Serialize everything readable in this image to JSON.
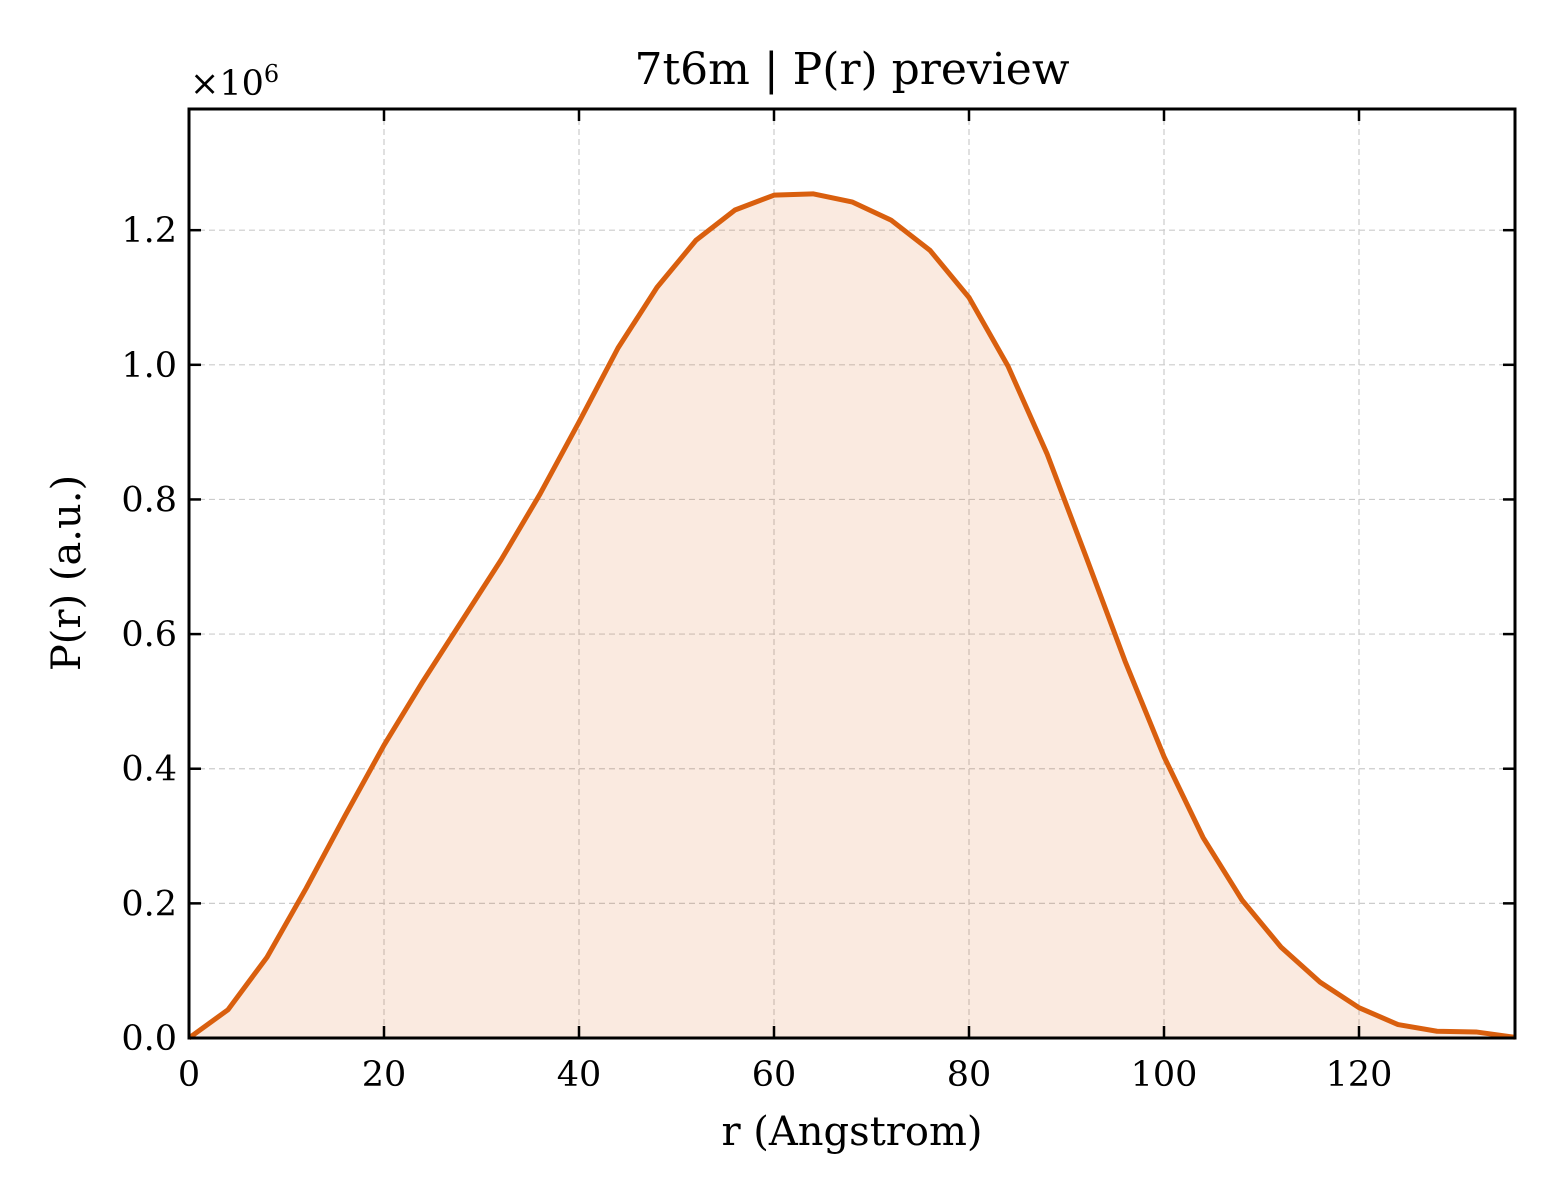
{
  "chart_data": {
    "type": "area",
    "title": "7t6m | P(r) preview",
    "xlabel": "r (Angstrom)",
    "ylabel": "P(r) (a.u.)",
    "y_multiplier_text": "×10",
    "y_multiplier_exponent": "6",
    "xlim": [
      0,
      136
    ],
    "ylim": [
      0,
      1.38
    ],
    "x_ticks": [
      0,
      20,
      40,
      60,
      80,
      100,
      120
    ],
    "x_tick_labels": [
      "0",
      "20",
      "40",
      "60",
      "80",
      "100",
      "120"
    ],
    "y_ticks": [
      0,
      0.2,
      0.4,
      0.6,
      0.8,
      1.0,
      1.2
    ],
    "y_tick_labels": [
      "0.0",
      "0.2",
      "0.4",
      "0.6",
      "0.8",
      "1.0",
      "1.2"
    ],
    "grid": true,
    "line_color": "#d95f0e",
    "fill_color": "#d95f0e",
    "fill_opacity": 0.13,
    "x": [
      0,
      4,
      8,
      12,
      16,
      20,
      24,
      28,
      32,
      36,
      40,
      44,
      48,
      52,
      56,
      60,
      64,
      68,
      72,
      76,
      80,
      84,
      88,
      92,
      96,
      100,
      104,
      108,
      112,
      116,
      120,
      124,
      128,
      132,
      136
    ],
    "y": [
      0.0,
      0.042,
      0.12,
      0.222,
      0.33,
      0.435,
      0.53,
      0.62,
      0.71,
      0.808,
      0.915,
      1.025,
      1.115,
      1.185,
      1.23,
      1.252,
      1.254,
      1.242,
      1.215,
      1.17,
      1.1,
      0.998,
      0.868,
      0.715,
      0.56,
      0.418,
      0.298,
      0.205,
      0.135,
      0.083,
      0.045,
      0.02,
      0.01,
      0.009,
      0.001
    ]
  }
}
